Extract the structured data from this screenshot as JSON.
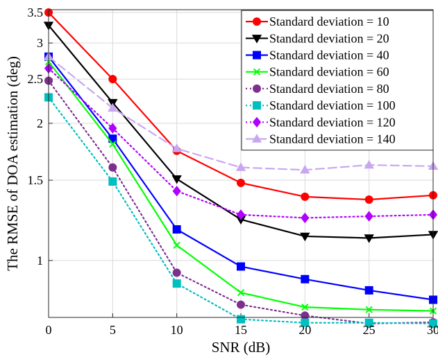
{
  "chart_data": {
    "type": "line",
    "title": "",
    "xlabel": "SNR (dB)",
    "ylabel": "The RMSE of DOA estimation (deg)",
    "x": [
      0,
      5,
      10,
      15,
      20,
      25,
      30
    ],
    "xlim": [
      0,
      30
    ],
    "ylim": [
      0.75,
      3.55
    ],
    "yscale": "log",
    "x_ticks": [
      "0",
      "5",
      "10",
      "15",
      "20",
      "25",
      "30"
    ],
    "y_ticks": [
      {
        "value": 1,
        "label": "1"
      },
      {
        "value": 1.5,
        "label": "1.5"
      },
      {
        "value": 2,
        "label": "2"
      },
      {
        "value": 2.5,
        "label": "2.5"
      },
      {
        "value": 3,
        "label": "3"
      },
      {
        "value": 3.5,
        "label": "3.5"
      }
    ],
    "grid": true,
    "legend_position": "top-right",
    "series": [
      {
        "name": "Standard deviation = 10",
        "color": "#ff0000",
        "marker": "circle",
        "dash": "solid",
        "values": [
          3.5,
          2.5,
          1.74,
          1.48,
          1.38,
          1.36,
          1.39
        ]
      },
      {
        "name": "Standard deviation = 20",
        "color": "#000000",
        "marker": "triangle-down",
        "dash": "solid",
        "values": [
          3.28,
          2.22,
          1.51,
          1.23,
          1.13,
          1.12,
          1.14
        ]
      },
      {
        "name": "Standard deviation = 40",
        "color": "#0000ff",
        "marker": "square",
        "dash": "solid",
        "values": [
          2.8,
          1.85,
          1.17,
          0.97,
          0.91,
          0.86,
          0.82
        ]
      },
      {
        "name": "Standard deviation = 60",
        "color": "#00ff00",
        "marker": "x",
        "dash": "solid",
        "values": [
          2.73,
          1.8,
          1.08,
          0.85,
          0.79,
          0.78,
          0.775
        ]
      },
      {
        "name": "Standard deviation = 80",
        "color": "#7e2f8e",
        "marker": "circle",
        "dash": "dotted",
        "values": [
          2.48,
          1.6,
          0.94,
          0.8,
          0.757,
          0.727,
          0.732
        ]
      },
      {
        "name": "Standard deviation = 100",
        "color": "#00bfbf",
        "marker": "square",
        "dash": "dotted",
        "values": [
          2.28,
          1.49,
          0.89,
          0.743,
          0.73,
          0.73,
          0.727
        ]
      },
      {
        "name": "Standard deviation = 120",
        "color": "#b000ff",
        "marker": "diamond",
        "dash": "dotted",
        "values": [
          2.64,
          1.95,
          1.42,
          1.26,
          1.24,
          1.25,
          1.26
        ]
      },
      {
        "name": "Standard deviation = 140",
        "color": "#c9a7f0",
        "marker": "triangle-up",
        "dash": "dashed",
        "values": [
          2.8,
          2.16,
          1.76,
          1.6,
          1.58,
          1.62,
          1.61
        ]
      }
    ]
  }
}
